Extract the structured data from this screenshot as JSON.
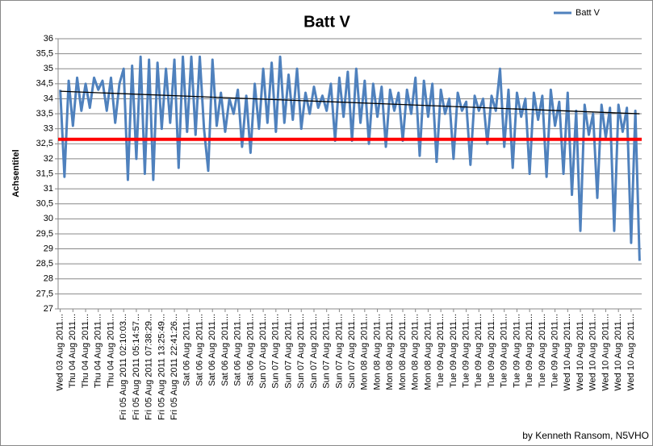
{
  "chart_data": {
    "type": "line",
    "title": "Batt V",
    "y_label": "Achsentitel",
    "footer": "by Kenneth Ransom, N5VHO",
    "legend": "top-right",
    "grid": true,
    "ylim": [
      27,
      36
    ],
    "yticks": [
      27,
      {
        "value": 27.5,
        "label": "27,5"
      },
      28,
      {
        "value": 28.5,
        "label": "28,5"
      },
      29,
      {
        "value": 29.5,
        "label": "29,5"
      },
      30,
      {
        "value": 30.5,
        "label": "30,5"
      },
      31,
      {
        "value": 31.5,
        "label": "31,5"
      },
      32,
      {
        "value": 32.5,
        "label": "32,5"
      },
      33,
      {
        "value": 33.5,
        "label": "33,5"
      },
      34,
      {
        "value": 34.5,
        "label": "34,5"
      },
      35,
      {
        "value": 35.5,
        "label": "35,5"
      },
      36
    ],
    "trend": {
      "start": 34.25,
      "end": 33.5,
      "color": "#000000"
    },
    "threshold": {
      "value": 32.65,
      "color": "#ff0000"
    },
    "categories": [
      "Wed 03 Aug 2011...",
      null,
      null,
      "Thu 04 Aug 2011...",
      null,
      null,
      "Thu 04 Aug 2011...",
      null,
      null,
      "Thu 04 Aug 2011...",
      null,
      null,
      "Thu 04 Aug 2011...",
      null,
      null,
      "Fri 05 Aug 2011 02:10:03...",
      null,
      null,
      "Fri 05 Aug 2011 05:14:57...",
      null,
      null,
      "Fri 05 Aug 2011 07:38:29...",
      null,
      null,
      "Fri 05 Aug 2011 13:25:49...",
      null,
      null,
      "Fri 05 Aug 2011 22:41:26...",
      null,
      null,
      "Sat 06 Aug 2011...",
      null,
      null,
      "Sat 06 Aug 2011...",
      null,
      null,
      "Sat 06 Aug 2011...",
      null,
      null,
      "Sat 06 Aug 2011...",
      null,
      null,
      "Sat 06 Aug 2011...",
      null,
      null,
      "Sat 06 Aug 2011...",
      null,
      null,
      "Sun 07 Aug 2011...",
      null,
      null,
      "Sun 07 Aug 2011...",
      null,
      null,
      "Sun 07 Aug 2011...",
      null,
      null,
      "Sun 07 Aug 2011...",
      null,
      null,
      "Sun 07 Aug 2011...",
      null,
      null,
      "Sun 07 Aug 2011...",
      null,
      null,
      "Sun 07 Aug 2011...",
      null,
      null,
      "Sun 07 Aug 2011...",
      null,
      null,
      "Mon 08 Aug 2011...",
      null,
      null,
      "Mon 08 Aug 2011...",
      null,
      null,
      "Mon 08 Aug 2011...",
      null,
      null,
      "Mon 08 Aug 2011...",
      null,
      null,
      "Mon 08 Aug 2011...",
      null,
      null,
      "Mon 08 Aug 2011...",
      null,
      null,
      "Tue 09 Aug 2011...",
      null,
      null,
      "Tue 09 Aug 2011...",
      null,
      null,
      "Tue 09 Aug 2011...",
      null,
      null,
      "Tue 09 Aug 2011...",
      null,
      null,
      "Tue 09 Aug 2011...",
      null,
      null,
      "Tue 09 Aug 2011...",
      null,
      null,
      "Tue 09 Aug 2011...",
      null,
      null,
      "Tue 09 Aug 2011...",
      null,
      null,
      "Tue 09 Aug 2011...",
      null,
      null,
      "Tue 09 Aug 2011...",
      null,
      null,
      "Wed 10 Aug 2011...",
      null,
      null,
      "Wed 10 Aug 2011...",
      null,
      null,
      "Wed 10 Aug 2011...",
      null,
      null,
      "Wed 10 Aug 2011...",
      null,
      null,
      "Wed 10 Aug 2011...",
      null,
      null,
      "Wed 10 Aug 2011...",
      null,
      null
    ],
    "series": [
      {
        "name": "Batt V",
        "color": "#4f81bd",
        "values": [
          34.3,
          31.4,
          34.6,
          33.1,
          34.7,
          33.6,
          34.5,
          33.7,
          34.7,
          34.3,
          34.6,
          33.6,
          34.7,
          33.2,
          34.5,
          35.0,
          31.3,
          35.1,
          32.0,
          35.4,
          31.5,
          35.3,
          31.3,
          35.2,
          33.0,
          35.0,
          33.2,
          35.3,
          31.7,
          35.4,
          32.9,
          35.4,
          32.8,
          35.4,
          33.0,
          31.6,
          35.3,
          33.1,
          34.2,
          32.9,
          34.0,
          33.5,
          34.3,
          32.4,
          34.1,
          32.2,
          34.5,
          33.0,
          35.0,
          33.2,
          35.2,
          32.9,
          35.4,
          33.2,
          34.8,
          33.3,
          35.0,
          33.0,
          34.2,
          33.5,
          34.4,
          33.7,
          34.1,
          33.6,
          34.5,
          32.6,
          34.7,
          33.4,
          34.9,
          32.6,
          35.0,
          33.2,
          34.6,
          32.5,
          34.5,
          33.4,
          34.4,
          32.4,
          34.3,
          33.6,
          34.2,
          32.6,
          34.3,
          33.5,
          34.7,
          32.1,
          34.6,
          33.4,
          34.5,
          31.9,
          34.3,
          33.5,
          34.0,
          32.0,
          34.2,
          33.6,
          33.9,
          31.8,
          34.1,
          33.6,
          34.0,
          32.5,
          34.1,
          33.6,
          35.0,
          32.4,
          34.3,
          31.7,
          34.2,
          33.4,
          34.0,
          31.5,
          34.2,
          33.3,
          34.1,
          31.4,
          34.3,
          33.1,
          33.9,
          31.5,
          34.2,
          30.8,
          33.6,
          29.6,
          33.8,
          32.8,
          33.5,
          30.7,
          33.8,
          32.7,
          33.7,
          29.6,
          33.8,
          32.9,
          33.7,
          29.2,
          33.6,
          28.6
        ]
      }
    ]
  }
}
